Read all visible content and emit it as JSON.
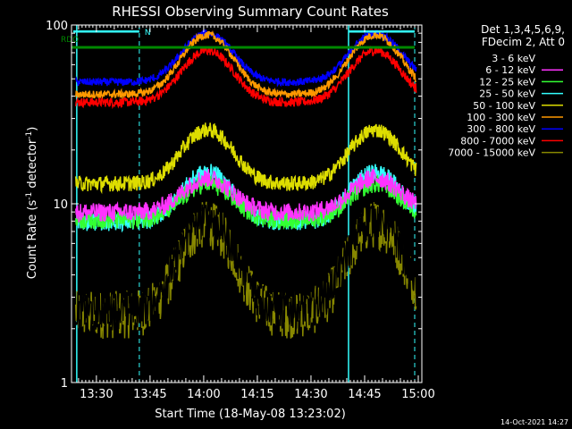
{
  "chart_data": {
    "type": "line",
    "title": "RHESSI Observing Summary Count Rates",
    "xlabel": "Start Time (18-May-08 13:23:02)",
    "ylabel_main": "Count Rate (s",
    "ylabel_sup1": "-1",
    "ylabel_mid": " detector",
    "ylabel_sup2": "-1",
    "ylabel_end": ")",
    "yscale": "log",
    "ylim": [
      1,
      100
    ],
    "xlim": [
      "13:23:02",
      "15:01:00"
    ],
    "x_ticks": [
      "13:30",
      "13:45",
      "14:00",
      "14:15",
      "14:30",
      "14:45",
      "15:00"
    ],
    "y_tick_labels": [
      "1",
      "10",
      "100"
    ],
    "legend_header": [
      "Det 1,3,4,5,6,9,",
      "FDecim 2, Att 0"
    ],
    "series": [
      {
        "name": "3 - 6 keV",
        "color": "#000000",
        "baseline": 2.6,
        "peak": 8.5,
        "noise": 0.25
      },
      {
        "name": "6 - 12 keV",
        "color": "#ff33ff",
        "baseline": 9.0,
        "peak": 14.0,
        "noise": 0.12
      },
      {
        "name": "12 - 25 keV",
        "color": "#33ff33",
        "baseline": 8.2,
        "peak": 13.0,
        "noise": 0.12
      },
      {
        "name": "25 - 50 keV",
        "color": "#33ffff",
        "baseline": 8.0,
        "peak": 15.0,
        "noise": 0.12
      },
      {
        "name": "50 - 100 keV",
        "color": "#dddd00",
        "baseline": 13.0,
        "peak": 26.0,
        "noise": 0.1
      },
      {
        "name": "100 - 300 keV",
        "color": "#ff9900",
        "baseline": 41.0,
        "peak": 88.0,
        "noise": 0.05
      },
      {
        "name": "300 - 800 keV",
        "color": "#0000ff",
        "baseline": 48.0,
        "peak": 90.0,
        "noise": 0.05
      },
      {
        "name": "800 - 7000 keV",
        "color": "#ff0000",
        "baseline": 37.0,
        "peak": 72.0,
        "noise": 0.06
      },
      {
        "name": "7000 - 15000 keV",
        "color": "#888800",
        "baseline": 2.5,
        "peak": 8.0,
        "noise": 0.3
      }
    ],
    "annotations": {
      "rdo_label": "RDO",
      "n_label": "N",
      "footer_date": "14-Oct-2021 14:27"
    },
    "colors": {
      "rdo_line": "#008800",
      "night_bar": "#33ffff",
      "saa_lines": "#33ffff",
      "axes": "#ffffff"
    }
  }
}
